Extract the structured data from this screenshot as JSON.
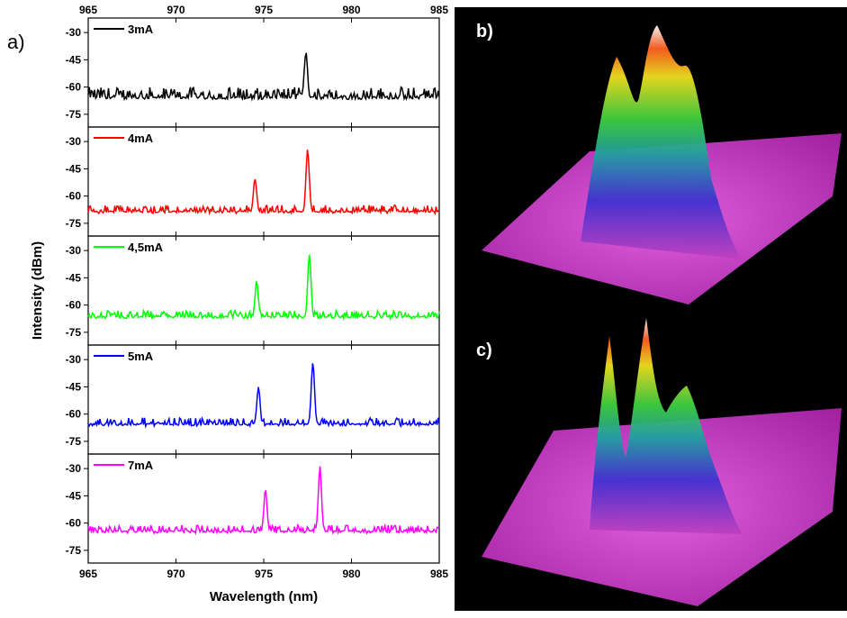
{
  "panels": {
    "a_label": "a)",
    "b_label": "b)",
    "c_label": "c)"
  },
  "chart_data": {
    "type": "line",
    "stacked_panels": true,
    "xlabel": "Wavelength (nm)",
    "ylabel": "Intensity (dBm)",
    "xlim": [
      965,
      985
    ],
    "x_ticks": [
      965,
      970,
      975,
      980,
      985
    ],
    "ylim": [
      -82,
      -22
    ],
    "y_ticks": [
      -30,
      -45,
      -60,
      -75
    ],
    "grid": false,
    "legend": "top-left",
    "series": [
      {
        "name": "3mA",
        "color": "#000000",
        "baseline": -66,
        "noise": 6,
        "peaks": [
          [
            977.4,
            -41
          ]
        ]
      },
      {
        "name": "4mA",
        "color": "#ff0000",
        "baseline": -69,
        "noise": 4,
        "peaks": [
          [
            974.5,
            -50
          ],
          [
            977.5,
            -34
          ]
        ]
      },
      {
        "name": "4,5mA",
        "color": "#00ff00",
        "baseline": -67,
        "noise": 4,
        "peaks": [
          [
            974.6,
            -47
          ],
          [
            977.6,
            -32
          ]
        ]
      },
      {
        "name": "5mA",
        "color": "#0000ff",
        "baseline": -66,
        "noise": 4,
        "peaks": [
          [
            974.7,
            -45
          ],
          [
            977.8,
            -31
          ]
        ]
      },
      {
        "name": "7mA",
        "color": "#ff00ff",
        "baseline": -65,
        "noise": 4,
        "peaks": [
          [
            975.1,
            -42
          ],
          [
            978.2,
            -29
          ]
        ]
      }
    ]
  }
}
